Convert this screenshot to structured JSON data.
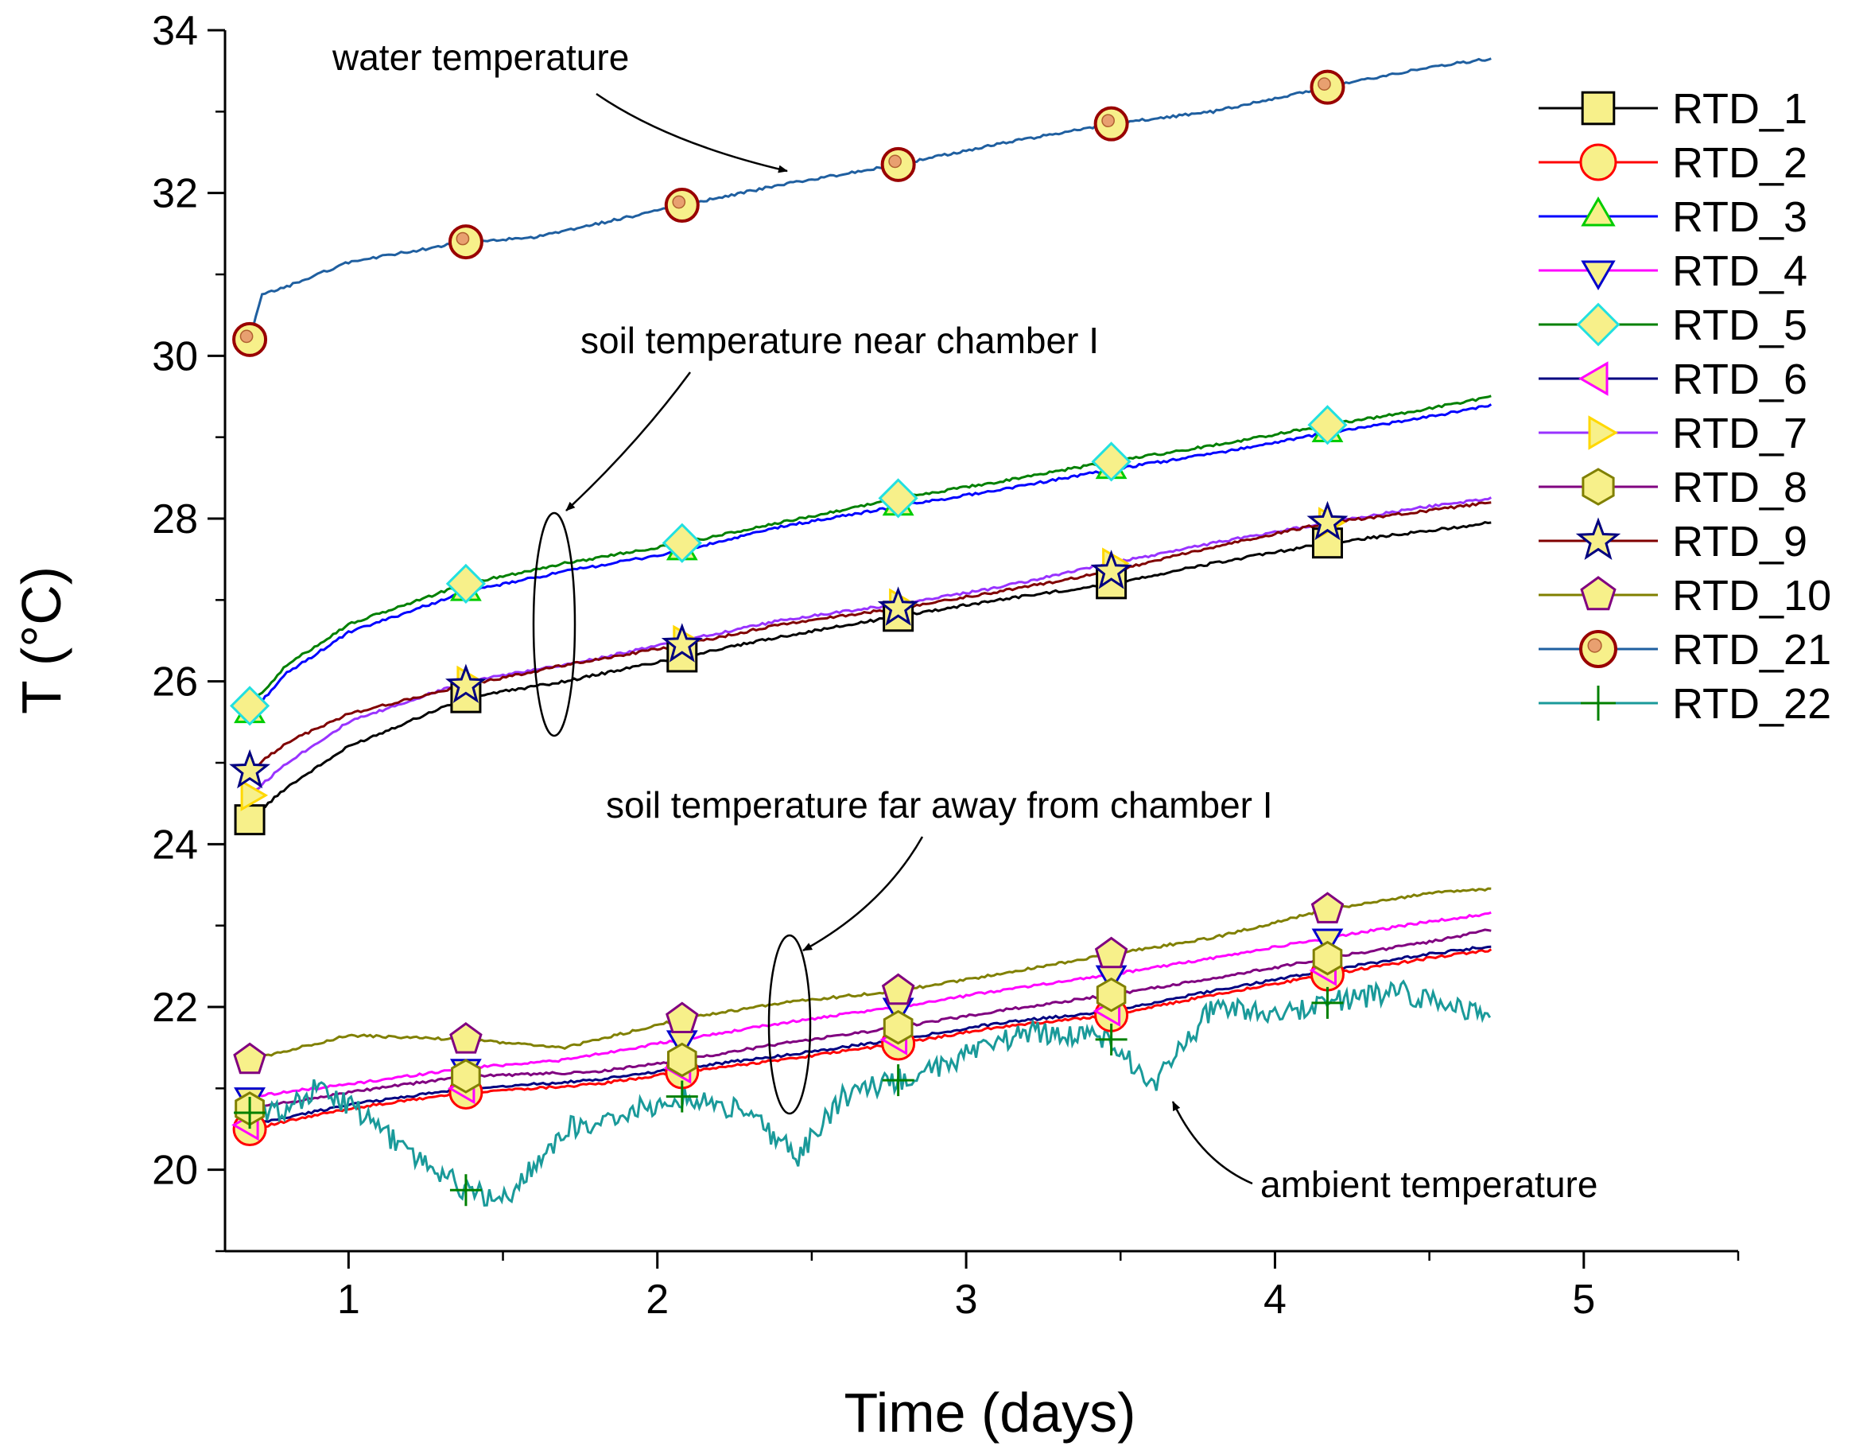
{
  "chart_data": {
    "type": "line",
    "xlabel": "Time (days)",
    "ylabel": "T (°C)",
    "xlim": [
      0.6,
      5.5
    ],
    "ylim": [
      19.0,
      34.0
    ],
    "x_ticks": [
      1,
      2,
      3,
      4,
      5
    ],
    "y_ticks": [
      20,
      22,
      24,
      26,
      28,
      30,
      32,
      34
    ],
    "grid": false,
    "legend_position": "right",
    "marker_x": [
      0.68,
      1.38,
      2.08,
      2.78,
      3.47,
      4.17
    ],
    "series": [
      {
        "name": "RTD_1",
        "color": "#000000",
        "marker": "square",
        "x": [
          0.68,
          0.8,
          1.0,
          1.38,
          1.7,
          2.08,
          2.4,
          2.78,
          3.1,
          3.47,
          3.8,
          4.17,
          4.5,
          4.7
        ],
        "y": [
          24.3,
          24.7,
          25.2,
          25.8,
          26.0,
          26.3,
          26.55,
          26.8,
          27.0,
          27.2,
          27.45,
          27.7,
          27.85,
          27.95
        ]
      },
      {
        "name": "RTD_2",
        "color": "#ff0000",
        "marker": "circle",
        "x": [
          0.68,
          1.0,
          1.38,
          1.8,
          2.08,
          2.4,
          2.78,
          3.1,
          3.47,
          3.8,
          4.17,
          4.5,
          4.7
        ],
        "y": [
          20.5,
          20.75,
          20.95,
          21.05,
          21.2,
          21.35,
          21.55,
          21.75,
          21.9,
          22.15,
          22.4,
          22.6,
          22.7
        ]
      },
      {
        "name": "RTD_3",
        "color": "#0000ff",
        "marker": "triangle-up",
        "x": [
          0.68,
          0.8,
          1.0,
          1.38,
          1.7,
          2.08,
          2.4,
          2.78,
          3.1,
          3.47,
          3.8,
          4.17,
          4.5,
          4.7
        ],
        "y": [
          25.6,
          26.1,
          26.6,
          27.1,
          27.35,
          27.6,
          27.9,
          28.15,
          28.35,
          28.6,
          28.8,
          29.05,
          29.25,
          29.4
        ]
      },
      {
        "name": "RTD_4",
        "color": "#ff00ff",
        "marker": "triangle-down",
        "x": [
          0.68,
          1.0,
          1.38,
          1.7,
          2.08,
          2.4,
          2.78,
          3.1,
          3.47,
          3.8,
          4.17,
          4.5,
          4.7
        ],
        "y": [
          20.9,
          21.05,
          21.25,
          21.35,
          21.6,
          21.8,
          22.0,
          22.2,
          22.4,
          22.6,
          22.85,
          23.05,
          23.15
        ]
      },
      {
        "name": "RTD_5",
        "color": "#008000",
        "marker": "diamond",
        "x": [
          0.68,
          0.8,
          1.0,
          1.38,
          1.7,
          2.08,
          2.4,
          2.78,
          3.1,
          3.47,
          3.8,
          4.17,
          4.5,
          4.7
        ],
        "y": [
          25.7,
          26.2,
          26.7,
          27.2,
          27.45,
          27.7,
          27.95,
          28.25,
          28.45,
          28.7,
          28.9,
          29.15,
          29.35,
          29.5
        ]
      },
      {
        "name": "RTD_6",
        "color": "#000080",
        "marker": "triangle-left",
        "x": [
          0.68,
          1.0,
          1.38,
          1.8,
          2.08,
          2.4,
          2.78,
          3.1,
          3.47,
          3.8,
          4.17,
          4.5,
          4.7
        ],
        "y": [
          20.55,
          20.8,
          21.0,
          21.1,
          21.25,
          21.4,
          21.6,
          21.8,
          21.95,
          22.2,
          22.45,
          22.65,
          22.75
        ]
      },
      {
        "name": "RTD_7",
        "color": "#9933ff",
        "marker": "triangle-right",
        "x": [
          0.68,
          0.8,
          1.0,
          1.38,
          1.7,
          2.08,
          2.4,
          2.78,
          3.1,
          3.47,
          3.8,
          4.17,
          4.5,
          4.7
        ],
        "y": [
          24.6,
          25.0,
          25.5,
          26.0,
          26.2,
          26.5,
          26.75,
          26.95,
          27.15,
          27.45,
          27.7,
          27.95,
          28.15,
          28.25
        ]
      },
      {
        "name": "RTD_8",
        "color": "#800080",
        "marker": "hexagon",
        "x": [
          0.68,
          1.0,
          1.38,
          1.8,
          2.08,
          2.4,
          2.78,
          3.1,
          3.47,
          3.8,
          4.17,
          4.5,
          4.7
        ],
        "y": [
          20.75,
          20.95,
          21.15,
          21.2,
          21.35,
          21.55,
          21.75,
          21.95,
          22.15,
          22.35,
          22.6,
          22.8,
          22.95
        ]
      },
      {
        "name": "RTD_9",
        "color": "#800000",
        "marker": "star",
        "x": [
          0.68,
          0.8,
          1.0,
          1.38,
          1.7,
          2.08,
          2.4,
          2.78,
          3.1,
          3.47,
          3.8,
          4.17,
          4.5,
          4.7
        ],
        "y": [
          24.9,
          25.25,
          25.6,
          25.95,
          26.2,
          26.45,
          26.7,
          26.9,
          27.1,
          27.35,
          27.65,
          27.95,
          28.1,
          28.2
        ]
      },
      {
        "name": "RTD_10",
        "color": "#808000",
        "marker": "pentagon",
        "x": [
          0.68,
          1.0,
          1.38,
          1.7,
          2.08,
          2.4,
          2.78,
          3.1,
          3.47,
          3.8,
          4.17,
          4.5,
          4.7
        ],
        "y": [
          21.35,
          21.65,
          21.6,
          21.5,
          21.85,
          22.05,
          22.2,
          22.4,
          22.65,
          22.85,
          23.2,
          23.4,
          23.45
        ]
      },
      {
        "name": "RTD_21",
        "color": "#1f5fa0",
        "marker": "circle-dot",
        "x": [
          0.68,
          0.72,
          0.8,
          1.0,
          1.38,
          1.6,
          2.08,
          2.4,
          2.78,
          3.1,
          3.47,
          3.8,
          4.17,
          4.5,
          4.7
        ],
        "y": [
          30.2,
          30.75,
          30.85,
          31.15,
          31.4,
          31.45,
          31.85,
          32.1,
          32.35,
          32.6,
          32.85,
          33.0,
          33.3,
          33.55,
          33.65
        ]
      },
      {
        "name": "RTD_22",
        "color": "#1a9a9a",
        "marker": "plus",
        "x": [
          0.68,
          0.8,
          0.9,
          1.0,
          1.2,
          1.38,
          1.5,
          1.7,
          1.9,
          2.08,
          2.3,
          2.45,
          2.6,
          2.78,
          3.0,
          3.2,
          3.47,
          3.6,
          3.8,
          4.0,
          4.17,
          4.4,
          4.6,
          4.7
        ],
        "y": [
          20.7,
          20.75,
          21.0,
          20.8,
          20.2,
          19.75,
          19.6,
          20.5,
          20.7,
          20.9,
          20.7,
          20.15,
          20.9,
          21.1,
          21.4,
          21.7,
          21.6,
          21.0,
          22.0,
          21.9,
          22.05,
          22.2,
          21.95,
          21.9
        ]
      }
    ],
    "annotations": [
      "water temperature",
      "soil temperature near chamber I",
      "soil temperature far away from chamber I",
      "ambient temperature"
    ]
  }
}
